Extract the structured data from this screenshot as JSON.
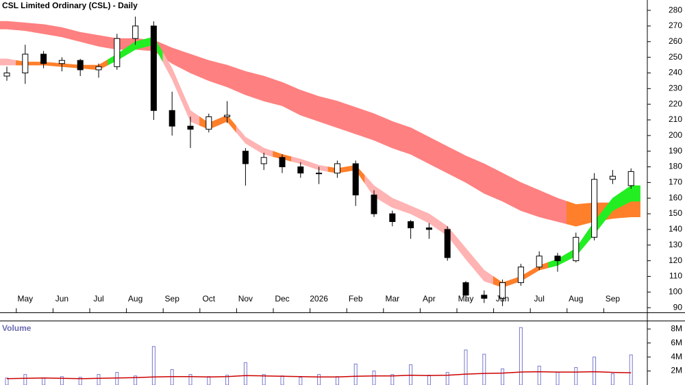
{
  "chart_data": {
    "type": "candlestick",
    "title": "CSL Limited Ordinary (CSL) - Daily",
    "categories": [
      null,
      "May",
      null,
      "Jun",
      null,
      "Jul",
      null,
      "Aug",
      null,
      "Sep",
      null,
      "Oct",
      null,
      "Nov",
      null,
      "Dec",
      null,
      "2026",
      null,
      "Feb",
      null,
      "Mar",
      null,
      "Apr",
      null,
      "May",
      null,
      "Jun",
      null,
      "Jul",
      null,
      "Aug",
      null,
      "Sep",
      null
    ],
    "open": [
      238,
      240,
      252,
      246,
      248,
      242,
      244,
      262,
      270,
      216,
      206,
      204,
      212,
      190,
      182,
      186,
      180,
      176,
      176,
      182,
      162,
      150,
      145,
      141,
      140,
      106,
      98,
      96,
      106,
      116,
      123,
      120,
      135,
      172,
      168
    ],
    "high": [
      244,
      258,
      254,
      250,
      249,
      246,
      265,
      276,
      273,
      228,
      212,
      214,
      222,
      192,
      189,
      188,
      183,
      180,
      184,
      184,
      165,
      152,
      146,
      144,
      142,
      107,
      101,
      108,
      118,
      126,
      125,
      138,
      176,
      178,
      179
    ],
    "low": [
      235,
      233,
      243,
      241,
      238,
      237,
      242,
      258,
      210,
      200,
      192,
      202,
      208,
      168,
      178,
      176,
      173,
      169,
      173,
      155,
      148,
      142,
      134,
      134,
      120,
      94,
      93,
      91,
      104,
      114,
      113,
      119,
      133,
      169,
      166
    ],
    "close": [
      240,
      252,
      246,
      248,
      242,
      244,
      262,
      270,
      216,
      206,
      204,
      212,
      213,
      182,
      186,
      180,
      176,
      176,
      182,
      162,
      150,
      145,
      141,
      140,
      122,
      98,
      96,
      106,
      116,
      123,
      120,
      135,
      172,
      174,
      177
    ],
    "up_color": "#ffffff",
    "down_color": "#000000",
    "ylim": [
      87,
      286.6
    ],
    "yticks": [
      90,
      100,
      110,
      120,
      130,
      140,
      150,
      160,
      170,
      180,
      190,
      200,
      210,
      220,
      230,
      240,
      250,
      260,
      270,
      280
    ],
    "bands": [
      {
        "upper": [
          273,
          272,
          271,
          269,
          266,
          264,
          262,
          262,
          261,
          256,
          252,
          248,
          245,
          241,
          238,
          234,
          229,
          225,
          222,
          218,
          214,
          209,
          205,
          199,
          193,
          187,
          182,
          176,
          170,
          165,
          160,
          156,
          157,
          157,
          158
        ],
        "lower": [
          268,
          267,
          265,
          263,
          260,
          257,
          255,
          255,
          254,
          246,
          240,
          235,
          231,
          226,
          222,
          219,
          213,
          209,
          205,
          201,
          197,
          192,
          188,
          182,
          176,
          170,
          163,
          158,
          152,
          148,
          145,
          142,
          145,
          147,
          148
        ],
        "colors": [
          "#ff8080",
          "#ff8080",
          "#ff8080",
          "#ff8080",
          "#ff8080",
          "#ff8080",
          "#ff8080",
          "#ff8080",
          "#ff8080",
          "#ff8080",
          "#ff8080",
          "#ff8080",
          "#ff8080",
          "#ff8080",
          "#ff8080",
          "#ff8080",
          "#ff8080",
          "#ff8080",
          "#ff8080",
          "#ff8080",
          "#ff8080",
          "#ff8080",
          "#ff8080",
          "#ff8080",
          "#ff8080",
          "#ff8080",
          "#ff8080",
          "#ff8080",
          "#ff8080",
          "#ff8080",
          "#ff8080",
          "#ff7f2a",
          "#ff7f2a",
          "#ff7f2a",
          "#ff7f2a"
        ]
      },
      {
        "upper": [
          249,
          247,
          247,
          246,
          245,
          245,
          252,
          260,
          263,
          243,
          216,
          208,
          213,
          199,
          192,
          188,
          185,
          181,
          179,
          181,
          168,
          160,
          155,
          150,
          142,
          128,
          114,
          106,
          110,
          117,
          121,
          128,
          145,
          160,
          168
        ],
        "lower": [
          245,
          245,
          245,
          244,
          243,
          242,
          248,
          255,
          258,
          236,
          209,
          204,
          209,
          195,
          188,
          185,
          182,
          178,
          176,
          178,
          161,
          154,
          150,
          144,
          136,
          121,
          107,
          103,
          107,
          114,
          117,
          123,
          137,
          152,
          158
        ],
        "colors": [
          "#ffb3b3",
          "#ff7f2a",
          "#ff7f2a",
          "#ff7f2a",
          "#ff7f2a",
          "#ff7f2a",
          "#22ee22",
          "#22ee22",
          "#22ee22",
          "#ffb3b3",
          "#ffb3b3",
          "#ff7f2a",
          "#ff7f2a",
          "#ffb3b3",
          "#ffb3b3",
          "#ff7f2a",
          "#ffb3b3",
          "#ffb3b3",
          "#ff7f2a",
          "#ff7f2a",
          "#ffb3b3",
          "#ffb3b3",
          "#ffb3b3",
          "#ffb3b3",
          "#ffb3b3",
          "#ffb3b3",
          "#ffb3b3",
          "#ff7f2a",
          "#ff7f2a",
          "#ff7f2a",
          "#22ee22",
          "#22ee22",
          "#22ee22",
          "#22ee22",
          "#22ee22"
        ]
      }
    ],
    "volume": {
      "label": "Volume",
      "color": "#7777cc",
      "ma_color": "#cc0000",
      "values": [
        1000000,
        1500000,
        1000000,
        1200000,
        1100000,
        1500000,
        1800000,
        1300000,
        5500000,
        2200000,
        1500000,
        1200000,
        1400000,
        3200000,
        1500000,
        1300000,
        1100000,
        1500000,
        1200000,
        3000000,
        2000000,
        1500000,
        2900000,
        1400000,
        1800000,
        5000000,
        4400000,
        2300000,
        8200000,
        2700000,
        1800000,
        2500000,
        4000000,
        1600000,
        4300000
      ],
      "ma": [
        900000,
        950000,
        1000000,
        950000,
        900000,
        950000,
        1000000,
        1050000,
        1150000,
        1200000,
        1200000,
        1150000,
        1200000,
        1350000,
        1300000,
        1250000,
        1200000,
        1150000,
        1150000,
        1250000,
        1300000,
        1300000,
        1400000,
        1350000,
        1400000,
        1550000,
        1650000,
        1700000,
        1850000,
        1900000,
        1850000,
        1850000,
        1900000,
        1800000,
        1750000
      ],
      "ylim": [
        0,
        9000000
      ],
      "yticks": [
        {
          "value": 2000000,
          "label": "2M"
        },
        {
          "value": 4000000,
          "label": "4M"
        },
        {
          "value": 6000000,
          "label": "6M"
        },
        {
          "value": 8000000,
          "label": "8M"
        }
      ]
    }
  }
}
